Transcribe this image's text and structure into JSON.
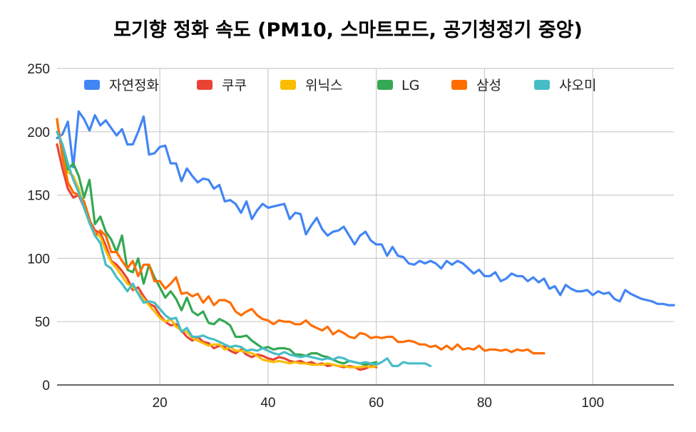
{
  "chart_data": {
    "type": "line",
    "title": "모기향 정화 속도 (PM10, 스마트모드, 공기청정기 중앙)",
    "xlabel": "",
    "ylabel": "",
    "xlim": [
      1,
      115
    ],
    "ylim": [
      0,
      250
    ],
    "x_ticks": [
      20,
      40,
      60,
      80,
      100
    ],
    "y_ticks": [
      0,
      50,
      100,
      150,
      200,
      250
    ],
    "grid": true,
    "legend_position": "top",
    "series": [
      {
        "name": "자연정화",
        "color": "#4285f4",
        "x_start": 1,
        "values": [
          195,
          198,
          208,
          172,
          216,
          210,
          201,
          213,
          205,
          209,
          203,
          197,
          202,
          190,
          190,
          200,
          212,
          182,
          183,
          188,
          189,
          175,
          175,
          161,
          171,
          165,
          160,
          163,
          162,
          155,
          158,
          145,
          146,
          143,
          136,
          145,
          131,
          138,
          143,
          140,
          141,
          142,
          143,
          131,
          136,
          135,
          119,
          126,
          132,
          123,
          118,
          121,
          122,
          125,
          118,
          111,
          118,
          121,
          114,
          111,
          111,
          102,
          109,
          102,
          101,
          96,
          95,
          98,
          96,
          98,
          96,
          92,
          98,
          95,
          98,
          96,
          92,
          88,
          91,
          86,
          86,
          89,
          82,
          84,
          88,
          86,
          86,
          82,
          85,
          81,
          84,
          76,
          78,
          71,
          79,
          76,
          74,
          74,
          75,
          71,
          74,
          72,
          73,
          68,
          66,
          75,
          72,
          70,
          68,
          67,
          66,
          64,
          64,
          63,
          63
        ]
      },
      {
        "name": "쿠쿠",
        "color": "#ea4335",
        "x_start": 1,
        "values": [
          190,
          171,
          155,
          148,
          150,
          140,
          130,
          122,
          120,
          110,
          98,
          95,
          90,
          84,
          75,
          77,
          70,
          64,
          62,
          55,
          50,
          47,
          48,
          43,
          38,
          35,
          38,
          34,
          33,
          29,
          31,
          30,
          27,
          25,
          28,
          24,
          22,
          24,
          23,
          21,
          20,
          22,
          21,
          19,
          18,
          19,
          17,
          18,
          16,
          17,
          15,
          16,
          15,
          14,
          15,
          14,
          12,
          13,
          15,
          14
        ]
      },
      {
        "name": "위닉스",
        "color": "#fbbc04",
        "x_start": 1,
        "values": [
          208,
          185,
          168,
          165,
          155,
          140,
          128,
          120,
          117,
          106,
          97,
          92,
          86,
          80,
          77,
          73,
          68,
          63,
          58,
          53,
          50,
          52,
          46,
          43,
          42,
          37,
          35,
          33,
          31,
          32,
          32,
          28,
          30,
          27,
          27,
          26,
          25,
          23,
          20,
          19,
          18,
          19,
          18,
          17,
          18,
          17,
          17,
          16,
          16,
          16,
          17,
          16,
          15,
          15,
          14,
          14,
          14,
          15,
          14,
          15
        ]
      },
      {
        "name": "LG",
        "color": "#34a853",
        "x_start": 1,
        "values": [
          200,
          190,
          170,
          175,
          165,
          148,
          162,
          127,
          133,
          121,
          115,
          105,
          118,
          91,
          89,
          100,
          80,
          95,
          85,
          77,
          69,
          74,
          68,
          59,
          69,
          58,
          55,
          58,
          49,
          48,
          52,
          50,
          47,
          38,
          38,
          39,
          35,
          32,
          29,
          30,
          28,
          29,
          29,
          28,
          24,
          24,
          23,
          25,
          25,
          23,
          22,
          20,
          18,
          17,
          19,
          18,
          17,
          16,
          17,
          18
        ]
      },
      {
        "name": "삼성",
        "color": "#ff6d01",
        "x_start": 1,
        "values": [
          210,
          180,
          160,
          152,
          150,
          145,
          131,
          118,
          122,
          118,
          105,
          105,
          98,
          92,
          98,
          86,
          95,
          95,
          82,
          82,
          76,
          80,
          85,
          72,
          73,
          70,
          72,
          65,
          70,
          63,
          67,
          67,
          65,
          58,
          55,
          58,
          60,
          55,
          52,
          51,
          48,
          51,
          50,
          50,
          48,
          48,
          51,
          47,
          45,
          43,
          46,
          40,
          43,
          41,
          38,
          37,
          41,
          40,
          37,
          38,
          37,
          38,
          38,
          34,
          34,
          35,
          34,
          32,
          32,
          30,
          31,
          28,
          31,
          28,
          32,
          28,
          29,
          28,
          31,
          27,
          28,
          28,
          27,
          28,
          26,
          28,
          27,
          28,
          25,
          25,
          25
        ]
      },
      {
        "name": "샤오미",
        "color": "#46bdc6",
        "x_start": 1,
        "values": [
          200,
          190,
          175,
          162,
          152,
          140,
          128,
          118,
          112,
          95,
          92,
          85,
          80,
          74,
          80,
          72,
          65,
          66,
          65,
          60,
          55,
          52,
          53,
          42,
          45,
          38,
          38,
          39,
          37,
          36,
          34,
          32,
          30,
          31,
          30,
          27,
          28,
          27,
          29,
          27,
          25,
          24,
          26,
          24,
          23,
          22,
          23,
          22,
          21,
          20,
          21,
          20,
          22,
          21,
          19,
          18,
          17,
          18,
          17,
          16,
          18,
          21,
          15,
          15,
          18,
          17,
          17,
          17,
          17,
          15
        ]
      }
    ]
  }
}
